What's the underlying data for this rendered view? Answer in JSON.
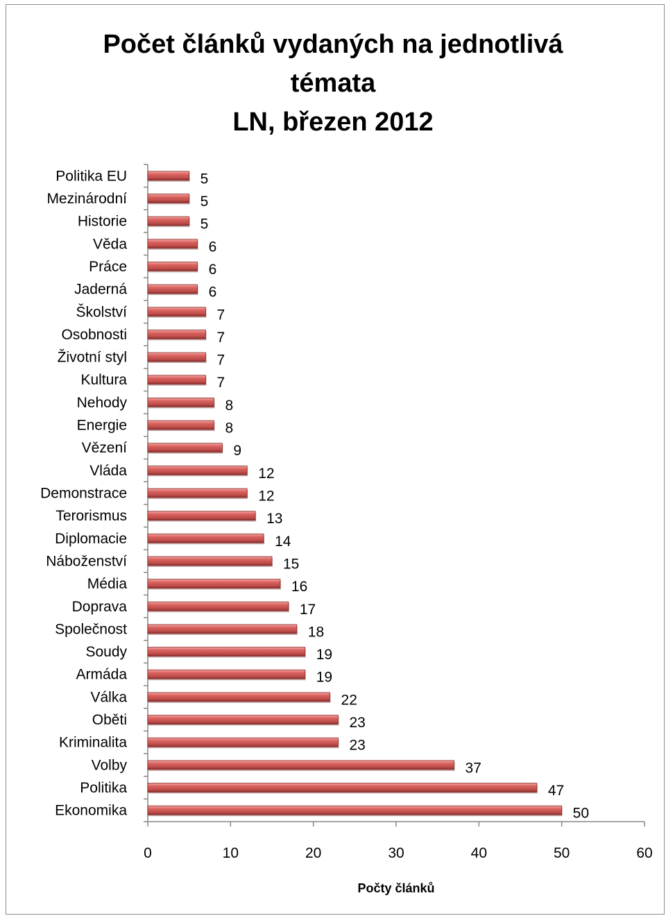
{
  "chart_data": {
    "type": "bar",
    "orientation": "horizontal",
    "title_lines": [
      "Počet článků vydaných na jednotlivá",
      "témata",
      "LN, březen 2012"
    ],
    "xlabel": "Počty článků",
    "ylabel": "",
    "xlim": [
      0,
      60
    ],
    "x_ticks": [
      "0",
      "10",
      "20",
      "30",
      "40",
      "50",
      "60"
    ],
    "grid": false,
    "legend": "none",
    "bar_color": "#c0504d",
    "categories": [
      "Politika EU",
      "Mezinárodní",
      "Historie",
      "Věda",
      "Práce",
      "Jaderná",
      "Školství",
      "Osobnosti",
      "Životní styl",
      "Kultura",
      "Nehody",
      "Energie",
      "Vězení",
      "Vláda",
      "Demonstrace",
      "Terorismus",
      "Diplomacie",
      "Náboženství",
      "Média",
      "Doprava",
      "Společnost",
      "Soudy",
      "Armáda",
      "Válka",
      "Oběti",
      "Kriminalita",
      "Volby",
      "Politika",
      "Ekonomika"
    ],
    "values": [
      5,
      5,
      5,
      6,
      6,
      6,
      7,
      7,
      7,
      7,
      8,
      8,
      9,
      12,
      12,
      13,
      14,
      15,
      16,
      17,
      18,
      19,
      19,
      22,
      23,
      23,
      37,
      47,
      50
    ]
  }
}
